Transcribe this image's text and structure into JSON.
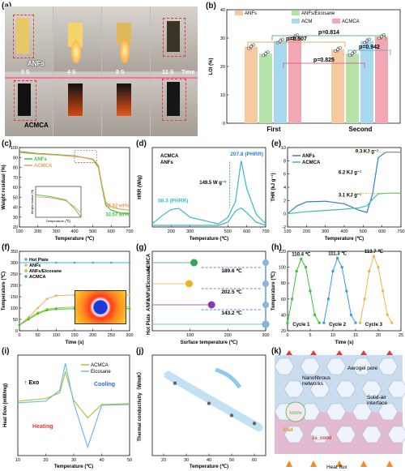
{
  "panels": {
    "a": {
      "label": "(a)",
      "sample_top": "ANFs",
      "sample_bottom": "ACMCA",
      "times": [
        "0 S",
        "4 S",
        "8 S",
        "12 S"
      ],
      "time_axis": "Time"
    },
    "b": {
      "label": "(b)",
      "ylabel": "LOI (%)",
      "legend": [
        "ANFs",
        "ANFs/Eicosane",
        "ACM",
        "ACMCA"
      ],
      "categories": [
        "First",
        "Second"
      ],
      "pvalues": [
        "p=0.507",
        "p=0.814",
        "p=0.942",
        "p=0.825"
      ],
      "colors": {
        "ANFs": "#f6c9a0",
        "ANFs_Eicosane": "#b6e3a8",
        "ACM": "#a7d8ee",
        "ACMCA": "#f3a7b3"
      }
    },
    "c": {
      "label": "(c)",
      "ylabel": "Weight residual (%)",
      "xlabel": "Temperature (℃)",
      "legend": [
        "ANFs",
        "ACMCA"
      ],
      "annot1": "36.92 wt%",
      "annot2": "33.57 wt%",
      "inset_ylabel": "Weight residual (%)",
      "inset_xlabel": "Temperature (℃)"
    },
    "d": {
      "label": "(d)",
      "ylabel": "HRR (W/g)",
      "xlabel": "Temperature (℃)",
      "legend": [
        "ACMCA",
        "ANFs"
      ],
      "annot_peak1": "207.8 (PHRR)",
      "annot_peak2": "58.3 (PHRR)",
      "annot_diff": "149.5 W g⁻¹"
    },
    "e": {
      "label": "(e)",
      "ylabel": "THR (kJ g⁻¹)",
      "xlabel": "Temperature (℃)",
      "legend": [
        "ANFs",
        "ACMCA"
      ],
      "annot1": "9.3 KJ g⁻¹",
      "annot2": "6.2 KJ g⁻¹",
      "annot3": "3.1 KJ g⁻¹"
    },
    "f": {
      "label": "(f)",
      "ylabel": "Temperature (℃)",
      "xlabel": "Time (s)",
      "legend": [
        "Hot Plate",
        "ANFs",
        "ANFs/Eicosane",
        "ACMCA"
      ]
    },
    "g": {
      "label": "(g)",
      "xlabel": "Surface temperature (℃)",
      "rows": [
        "ACMCA",
        "ANFs/Eicosane",
        "ANFs",
        "Hot Plate"
      ],
      "diff1": "189.6 ℃",
      "diff2": "202.5 ℃",
      "diff3": "143.2 ℃"
    },
    "h": {
      "label": "(h)",
      "ylabel": "Temperature (℃)",
      "xlabel": "Time (s)",
      "peaks": [
        "110.4 ℃",
        "111.3 ℃",
        "113.7 ℃"
      ],
      "cycles": [
        "Cycle 1",
        "Cycle 2",
        "Cycle 3"
      ]
    },
    "i": {
      "label": "(i)",
      "ylabel": "Heat flow (mW/mg)",
      "xlabel": "Temperature (℃)",
      "legend": [
        "ACMCA",
        "Eicosane"
      ],
      "exo": "Exo",
      "cooling": "Cooling",
      "heating": "Heating"
    },
    "j": {
      "label": "(j)",
      "ylabel": "Thermal conductivity（W/mK）",
      "xlabel": "Temperature (℃)"
    },
    "k": {
      "label": "(k)",
      "aerogel_pore": "Aerogel pore",
      "nanofibrous": "Nanofibrous\nnetworks",
      "interface": "Solid-air\ninterface",
      "heat_flux": "Heat flux",
      "lambda_rad": "λrad",
      "lambda_cond": "λs_cond",
      "lambda_conv": "λconv"
    }
  },
  "chart_data": [
    {
      "panel": "b",
      "type": "bar",
      "categories": [
        "First",
        "Second"
      ],
      "ylim": [
        0,
        40
      ],
      "yticks": [
        0,
        10,
        20,
        30,
        40
      ],
      "series": [
        {
          "name": "ANFs",
          "values": [
            27.0,
            26.0
          ]
        },
        {
          "name": "ANFs/Eicosane",
          "values": [
            24.5,
            24.5
          ]
        },
        {
          "name": "ACM",
          "values": [
            29.0,
            29.0
          ]
        },
        {
          "name": "ACMCA",
          "values": [
            30.5,
            30.5
          ]
        }
      ]
    },
    {
      "panel": "c",
      "type": "line",
      "xlim": [
        100,
        700
      ],
      "ylim": [
        20,
        100
      ],
      "xticks": [
        100,
        200,
        300,
        400,
        500,
        600,
        700
      ],
      "yticks": [
        20,
        30,
        40,
        50,
        60,
        70,
        80,
        90,
        100
      ],
      "series": [
        {
          "name": "ANFs",
          "x": [
            100,
            200,
            300,
            400,
            450,
            500,
            530,
            550,
            570,
            600,
            650,
            700
          ],
          "y": [
            96,
            94,
            93,
            91.5,
            90,
            88,
            80,
            60,
            42,
            37,
            34,
            33.57
          ]
        },
        {
          "name": "ACMCA",
          "x": [
            100,
            200,
            300,
            400,
            450,
            500,
            530,
            550,
            570,
            600,
            650,
            700
          ],
          "y": [
            95,
            93.5,
            92.5,
            91,
            90,
            88.5,
            82,
            62,
            45,
            40,
            38,
            36.92
          ]
        }
      ]
    },
    {
      "panel": "d",
      "type": "line",
      "xlim": [
        100,
        700
      ],
      "ylim": [
        0,
        250
      ],
      "xticks": [
        200,
        300,
        500,
        600,
        700
      ],
      "series": [
        {
          "name": "ACMCA",
          "x": [
            100,
            150,
            200,
            240,
            270,
            300,
            450,
            500,
            540,
            570,
            600,
            650,
            700
          ],
          "y": [
            10,
            35,
            55,
            58.3,
            45,
            30,
            10,
            30,
            80,
            207.8,
            120,
            40,
            10
          ]
        },
        {
          "name": "ANFs",
          "x": [
            100,
            200,
            300,
            450,
            500,
            540,
            570,
            600,
            650,
            700
          ],
          "y": [
            5,
            5,
            5,
            5,
            15,
            50,
            60,
            45,
            15,
            5
          ]
        }
      ]
    },
    {
      "panel": "e",
      "type": "line",
      "xlim": [
        100,
        700
      ],
      "ylim": [
        -2,
        10
      ],
      "xticks": [
        100,
        200,
        300,
        400,
        500,
        600,
        700
      ],
      "yticks": [
        -2,
        0,
        2,
        4,
        6,
        8,
        10
      ],
      "series": [
        {
          "name": "ANFs",
          "x": [
            100,
            150,
            200,
            300,
            400,
            480,
            520,
            550,
            580,
            620,
            700
          ],
          "y": [
            0,
            1.2,
            1.8,
            1.9,
            1.5,
            0.5,
            0.2,
            3,
            8.5,
            9.3,
            9.3
          ]
        },
        {
          "name": "ACMCA",
          "x": [
            100,
            200,
            300,
            400,
            480,
            520,
            550,
            580,
            620,
            700
          ],
          "y": [
            0,
            0.3,
            0.5,
            0.7,
            0.9,
            1.2,
            2.2,
            3.0,
            3.1,
            3.1
          ]
        }
      ]
    },
    {
      "panel": "f",
      "type": "line",
      "xlim": [
        0,
        300
      ],
      "ylim": [
        0,
        350
      ],
      "xticks": [
        0,
        50,
        100,
        150,
        200,
        250,
        300
      ],
      "yticks": [
        0,
        50,
        100,
        150,
        200,
        250,
        300,
        350
      ],
      "series": [
        {
          "name": "Hot Plate",
          "x": [
            0,
            50,
            100,
            150,
            200,
            250,
            300
          ],
          "y": [
            300,
            300,
            300,
            300,
            300,
            300,
            300
          ]
        },
        {
          "name": "ANFs",
          "x": [
            0,
            25,
            50,
            75,
            100,
            150,
            200,
            250,
            300
          ],
          "y": [
            25,
            60,
            100,
            140,
            155,
            157,
            157,
            157,
            157
          ]
        },
        {
          "name": "ANFs/Eicosane",
          "x": [
            0,
            25,
            50,
            75,
            100,
            150,
            200,
            250,
            300
          ],
          "y": [
            25,
            55,
            80,
            95,
            100,
            105,
            105,
            105,
            105
          ]
        },
        {
          "name": "ACMCA",
          "x": [
            0,
            25,
            50,
            75,
            100,
            150,
            200,
            250,
            300
          ],
          "y": [
            25,
            50,
            75,
            90,
            95,
            97,
            97,
            97,
            97
          ]
        }
      ]
    },
    {
      "panel": "g",
      "type": "scatter",
      "xlim": [
        0,
        300
      ],
      "xticks": [
        100,
        200,
        300
      ],
      "categories": [
        "ACMCA",
        "ANFs/Eicosane",
        "ANFs",
        "Hot Plate"
      ],
      "values": [
        110.4,
        97.5,
        156.8,
        300
      ]
    },
    {
      "panel": "h",
      "type": "line",
      "xlim": [
        0,
        25
      ],
      "ylim": [
        20,
        120
      ],
      "xticks": [
        0,
        5,
        10,
        15,
        20,
        25
      ],
      "yticks": [
        20,
        40,
        60,
        80,
        100,
        120
      ],
      "series": [
        {
          "name": "Cycle 1",
          "x": [
            0,
            1,
            2,
            3,
            4,
            5,
            6,
            7
          ],
          "y": [
            30,
            60,
            95,
            110.4,
            100,
            70,
            40,
            30
          ]
        },
        {
          "name": "Cycle 2",
          "x": [
            8,
            9,
            10,
            11,
            12,
            13,
            14,
            15
          ],
          "y": [
            30,
            60,
            95,
            111.3,
            100,
            70,
            40,
            30
          ]
        },
        {
          "name": "Cycle 3",
          "x": [
            16,
            17,
            18,
            19,
            20,
            21,
            22,
            23
          ],
          "y": [
            30,
            60,
            95,
            113.7,
            100,
            70,
            40,
            30
          ]
        }
      ]
    },
    {
      "panel": "i",
      "type": "line",
      "xlim": [
        10,
        50
      ],
      "xticks": [
        10,
        20,
        30,
        40,
        50
      ],
      "series": [
        {
          "name": "ACMCA",
          "x": [
            10,
            20,
            25,
            27,
            30,
            35,
            40,
            50
          ],
          "y": [
            0.5,
            0.8,
            1.5,
            4,
            0.6,
            -1.5,
            0.1,
            0.2
          ]
        },
        {
          "name": "Eicosane",
          "x": [
            10,
            20,
            25,
            27,
            30,
            35,
            40,
            50
          ],
          "y": [
            0.3,
            0.5,
            1.8,
            5,
            0.3,
            -5,
            0,
            0.1
          ]
        }
      ]
    },
    {
      "panel": "j",
      "type": "scatter",
      "xlim": [
        15,
        65
      ],
      "xticks": [
        20,
        30,
        40,
        50,
        60
      ],
      "x": [
        25,
        40,
        50,
        60
      ],
      "y": [
        0.048,
        0.043,
        0.04,
        0.038
      ]
    }
  ]
}
